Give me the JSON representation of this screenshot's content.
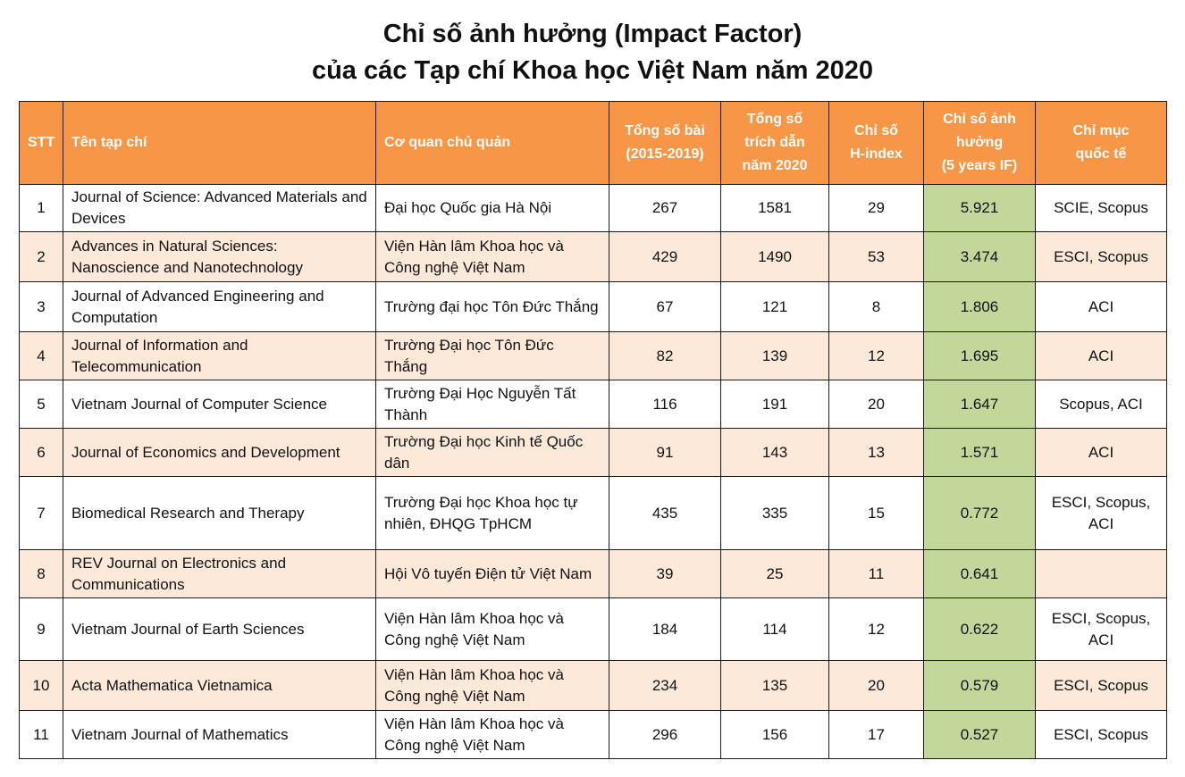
{
  "title": {
    "line1": "Chỉ số ảnh hưởng (Impact Factor)",
    "line2": "của các Tạp chí Khoa học Việt Nam năm 2020"
  },
  "colors": {
    "header_bg": "#f79646",
    "alt_row_bg": "#fde9d9",
    "if_col_bg": "#c4d79b"
  },
  "table": {
    "headers": {
      "stt": "STT",
      "name": "Tên tạp chí",
      "agency": "Cơ quan chủ quản",
      "articles_a": "Tổng số bài",
      "articles_b": "(2015-2019)",
      "citations_a": "Tổng số",
      "citations_b": "trích dẫn",
      "citations_c": "năm 2020",
      "hindex_a": "Chỉ số",
      "hindex_b": "H-index",
      "if_a": "Chỉ số ảnh",
      "if_b": "hưởng",
      "if_c": "(5 years IF)",
      "index_a": "Chỉ mục",
      "index_b": "quốc tế"
    },
    "rows": [
      {
        "stt": "1",
        "name": "Journal of Science: Advanced Materials and Devices",
        "agency": "Đại học Quốc gia Hà Nội",
        "articles": "267",
        "citations": "1581",
        "hindex": "29",
        "if": "5.921",
        "index": "SCIE, Scopus"
      },
      {
        "stt": "2",
        "name": "Advances in Natural Sciences: Nanoscience and Nanotechnology",
        "agency": "Viện Hàn lâm Khoa học và Công nghệ Việt Nam",
        "articles": "429",
        "citations": "1490",
        "hindex": "53",
        "if": "3.474",
        "index": "ESCI, Scopus"
      },
      {
        "stt": "3",
        "name": "Journal of Advanced Engineering  and Computation",
        "agency": "Trường đại học Tôn Đức Thắng",
        "articles": "67",
        "citations": "121",
        "hindex": "8",
        "if": "1.806",
        "index": "ACI"
      },
      {
        "stt": "4",
        "name": "Journal of Information and Telecommunication",
        "agency": "Trường Đại học Tôn Đức Thắng",
        "articles": "82",
        "citations": "139",
        "hindex": "12",
        "if": "1.695",
        "index": "ACI"
      },
      {
        "stt": "5",
        "name": "Vietnam Journal of Computer Science",
        "agency": "Trường Đại Học Nguyễn Tất Thành",
        "articles": "116",
        "citations": "191",
        "hindex": "20",
        "if": "1.647",
        "index": "Scopus, ACI"
      },
      {
        "stt": "6",
        "name": "Journal of Economics and Development",
        "agency": "Trường Đại học Kinh tế Quốc dân",
        "articles": "91",
        "citations": "143",
        "hindex": "13",
        "if": "1.571",
        "index": "ACI"
      },
      {
        "stt": "7",
        "name": "Biomedical Research and Therapy",
        "agency": "Trường Đại học Khoa học tự nhiên, ĐHQG TpHCM",
        "articles": "435",
        "citations": "335",
        "hindex": "15",
        "if": "0.772",
        "index": "ESCI, Scopus, ACI"
      },
      {
        "stt": "8",
        "name": "REV Journal on Electronics and Communications",
        "agency": "Hội Vô tuyến Điện tử Việt Nam",
        "articles": "39",
        "citations": "25",
        "hindex": "11",
        "if": "0.641",
        "index": ""
      },
      {
        "stt": "9",
        "name": "Vietnam Journal of Earth Sciences",
        "agency": "Viện Hàn lâm Khoa học và Công nghệ Việt Nam",
        "articles": "184",
        "citations": "114",
        "hindex": "12",
        "if": "0.622",
        "index": "ESCI, Scopus, ACI"
      },
      {
        "stt": "10",
        "name": "Acta Mathematica Vietnamica",
        "agency": "Viện Hàn lâm Khoa học và Công nghệ Việt Nam",
        "articles": "234",
        "citations": "135",
        "hindex": "20",
        "if": "0.579",
        "index": "ESCI, Scopus"
      },
      {
        "stt": "11",
        "name": "Vietnam Journal of Mathematics",
        "agency": "Viện Hàn lâm Khoa học và Công nghệ Việt Nam",
        "articles": "296",
        "citations": "156",
        "hindex": "17",
        "if": "0.527",
        "index": "ESCI, Scopus"
      }
    ]
  }
}
